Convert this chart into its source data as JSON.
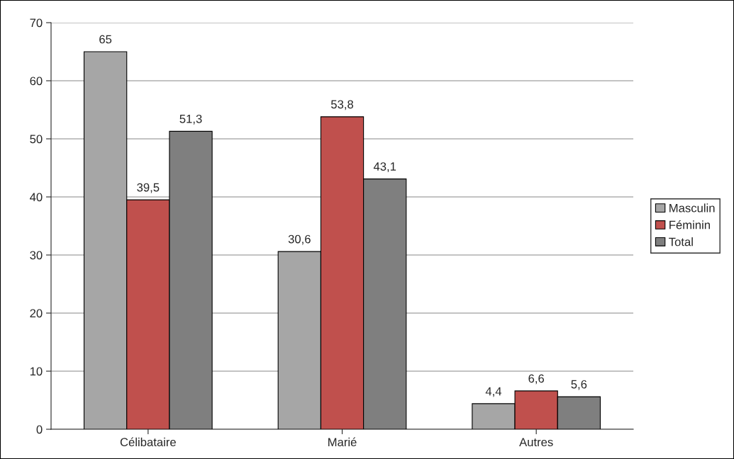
{
  "chart_data": {
    "type": "bar",
    "categories": [
      "Célibataire",
      "Marié",
      "Autres"
    ],
    "series": [
      {
        "name": "Masculin",
        "color": "#a6a6a6",
        "values": [
          65,
          30.6,
          4.4
        ],
        "value_labels": [
          "65",
          "30,6",
          "4,4"
        ]
      },
      {
        "name": "Féminin",
        "color": "#c0504d",
        "values": [
          39.5,
          53.8,
          6.6
        ],
        "value_labels": [
          "39,5",
          "53,8",
          "6,6"
        ]
      },
      {
        "name": "Total",
        "color": "#7f7f7f",
        "values": [
          51.3,
          43.1,
          5.6
        ],
        "value_labels": [
          "51,3",
          "43,1",
          "5,6"
        ]
      }
    ],
    "ylim": [
      0,
      70
    ],
    "yticks": [
      0,
      10,
      20,
      30,
      40,
      50,
      60,
      70
    ],
    "grid": "y",
    "legend": "right"
  }
}
